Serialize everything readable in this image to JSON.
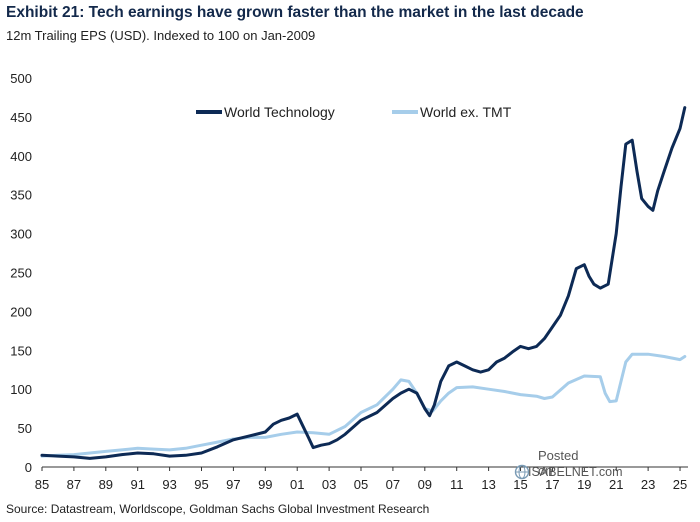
{
  "title": "Exhibit 21: Tech earnings have grown faster than the market in the last decade",
  "subtitle": "12m Trailing EPS (USD). Indexed to 100 on Jan-2009",
  "source": "Source: Datastream, Worldscope, Goldman Sachs Global Investment Research",
  "watermark": {
    "line1": "Posted on",
    "line2": "ISABELNET.com"
  },
  "chart_data": {
    "type": "line",
    "title": "Exhibit 21: Tech earnings have grown faster than the market in the last decade",
    "xlabel": "",
    "ylabel": "",
    "xlim": [
      1985,
      2025.5
    ],
    "ylim": [
      0,
      500
    ],
    "yticks": [
      0,
      50,
      100,
      150,
      200,
      250,
      300,
      350,
      400,
      450,
      500
    ],
    "yticklabels": [
      "0",
      "50",
      "100",
      "150",
      "200",
      "250",
      "300",
      "350",
      "400",
      "450",
      "500"
    ],
    "xticks": [
      1985,
      1987,
      1989,
      1991,
      1993,
      1995,
      1997,
      1999,
      2001,
      2003,
      2005,
      2007,
      2009,
      2011,
      2013,
      2015,
      2017,
      2019,
      2021,
      2023,
      2025
    ],
    "xticklabels": [
      "85",
      "87",
      "89",
      "91",
      "93",
      "95",
      "97",
      "99",
      "01",
      "03",
      "05",
      "07",
      "09",
      "11",
      "13",
      "15",
      "17",
      "19",
      "21",
      "23",
      "25"
    ],
    "grid": false,
    "legend_position": "top",
    "series": [
      {
        "name": "World Technology",
        "color": "#0d2a55",
        "x": [
          1985,
          1986,
          1987,
          1988,
          1989,
          1990,
          1991,
          1992,
          1993,
          1994,
          1995,
          1996,
          1997,
          1998,
          1999,
          1999.5,
          2000,
          2000.5,
          2001,
          2001.3,
          2001.7,
          2002,
          2002.5,
          2003,
          2003.5,
          2004,
          2005,
          2006,
          2007,
          2007.5,
          2008,
          2008.5,
          2009,
          2009.3,
          2009.6,
          2010,
          2010.5,
          2011,
          2011.5,
          2012,
          2012.5,
          2013,
          2013.5,
          2014,
          2014.5,
          2015,
          2015.5,
          2016,
          2016.5,
          2017,
          2017.5,
          2018,
          2018.5,
          2019,
          2019.3,
          2019.6,
          2020,
          2020.5,
          2021,
          2021.3,
          2021.6,
          2022,
          2022.3,
          2022.6,
          2023,
          2023.3,
          2023.6,
          2024,
          2024.5,
          2025,
          2025.3
        ],
        "values": [
          15,
          14,
          13,
          11,
          13,
          16,
          18,
          17,
          14,
          15,
          18,
          26,
          35,
          40,
          45,
          55,
          60,
          63,
          68,
          55,
          38,
          25,
          28,
          30,
          35,
          42,
          60,
          70,
          88,
          95,
          100,
          95,
          75,
          66,
          80,
          110,
          130,
          135,
          130,
          125,
          122,
          125,
          135,
          140,
          148,
          155,
          152,
          155,
          165,
          180,
          195,
          220,
          255,
          260,
          245,
          235,
          230,
          235,
          300,
          360,
          415,
          420,
          380,
          345,
          335,
          330,
          355,
          380,
          410,
          435,
          462
        ]
      },
      {
        "name": "World ex. TMT",
        "color": "#a6cdea",
        "x": [
          1985,
          1986,
          1987,
          1988,
          1989,
          1990,
          1991,
          1992,
          1993,
          1994,
          1995,
          1996,
          1997,
          1998,
          1999,
          2000,
          2001,
          2002,
          2003,
          2004,
          2005,
          2006,
          2007,
          2007.5,
          2008,
          2008.5,
          2009,
          2009.5,
          2010,
          2010.5,
          2011,
          2012,
          2013,
          2014,
          2015,
          2016,
          2016.5,
          2017,
          2018,
          2019,
          2020,
          2020.3,
          2020.6,
          2021,
          2021.3,
          2021.6,
          2022,
          2023,
          2024,
          2025,
          2025.3
        ],
        "values": [
          14,
          15,
          16,
          18,
          20,
          22,
          24,
          23,
          22,
          24,
          28,
          32,
          36,
          38,
          38,
          42,
          45,
          44,
          42,
          52,
          70,
          80,
          100,
          112,
          110,
          95,
          75,
          72,
          85,
          95,
          102,
          103,
          100,
          97,
          93,
          91,
          88,
          90,
          108,
          117,
          116,
          95,
          84,
          85,
          110,
          135,
          145,
          145,
          142,
          138,
          142
        ]
      }
    ]
  }
}
